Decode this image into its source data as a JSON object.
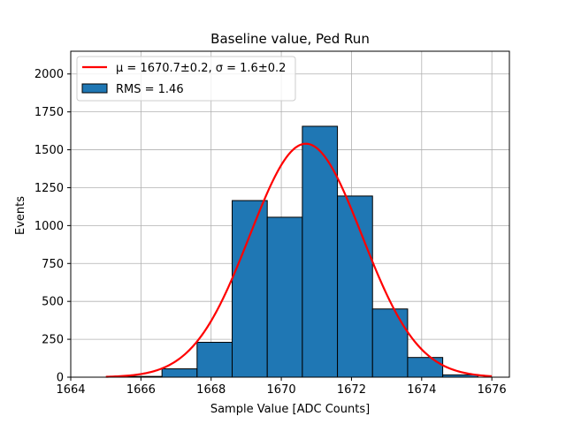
{
  "chart_data": {
    "type": "bar",
    "title": "Baseline value, Ped Run",
    "xlabel": "Sample Value [ADC Counts]",
    "ylabel": "Events",
    "xlim": [
      1664,
      1676.5
    ],
    "ylim": [
      0,
      2150
    ],
    "xticks": [
      1664,
      1666,
      1668,
      1670,
      1672,
      1674,
      1676
    ],
    "yticks": [
      0,
      250,
      500,
      750,
      1000,
      1250,
      1500,
      1750,
      2000
    ],
    "grid": true,
    "legend_position": "upper-left",
    "histogram": {
      "name": "RMS = 1.46",
      "color": "#1f77b4",
      "edge_color": "#000000",
      "bins": [
        {
          "left": 1664.6,
          "right": 1665.6,
          "value": 0
        },
        {
          "left": 1665.6,
          "right": 1666.6,
          "value": 5
        },
        {
          "left": 1666.6,
          "right": 1667.6,
          "value": 55
        },
        {
          "left": 1667.6,
          "right": 1668.6,
          "value": 230
        },
        {
          "left": 1668.6,
          "right": 1669.6,
          "value": 1165
        },
        {
          "left": 1669.6,
          "right": 1670.6,
          "value": 1055
        },
        {
          "left": 1670.6,
          "right": 1671.6,
          "value": 1655
        },
        {
          "left": 1671.6,
          "right": 1672.6,
          "value": 1195
        },
        {
          "left": 1672.6,
          "right": 1673.6,
          "value": 450
        },
        {
          "left": 1673.6,
          "right": 1674.6,
          "value": 130
        },
        {
          "left": 1674.6,
          "right": 1675.6,
          "value": 15
        }
      ]
    },
    "fit": {
      "name": "$\\mu = 1670.7 \\pm 0.2$, $\\sigma = 1.6 \\pm 0.2$",
      "legend_label_display": "μ = 1670.7±0.2, σ = 1.6±0.2",
      "color": "#ff0000",
      "function": "gaussian",
      "mu": 1670.7,
      "sigma": 1.6,
      "amplitude": 1540,
      "x_range": [
        1665,
        1676
      ]
    }
  }
}
